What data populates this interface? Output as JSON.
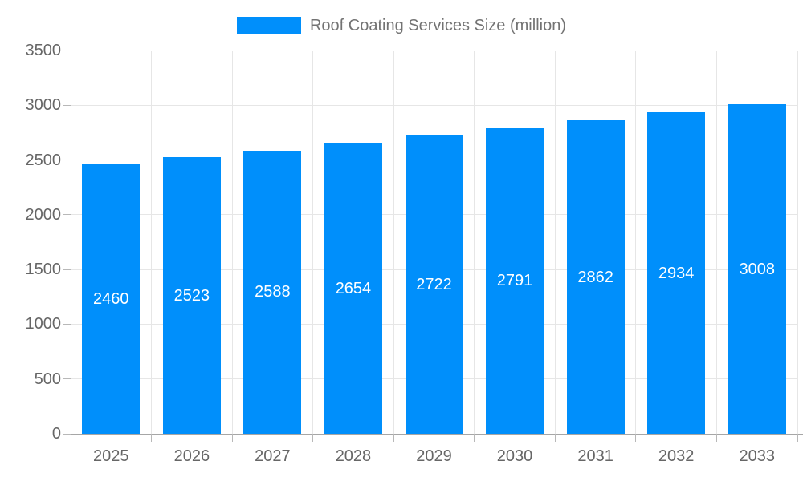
{
  "chart_data": {
    "type": "bar",
    "title": "",
    "xlabel": "",
    "ylabel": "",
    "legend": {
      "label": "Roof Coating Services Size (million)",
      "position": "top-center"
    },
    "series_name": "Roof Coating Services Size (million)",
    "categories": [
      "2025",
      "2026",
      "2027",
      "2028",
      "2029",
      "2030",
      "2031",
      "2032",
      "2033"
    ],
    "values": [
      2460,
      2523,
      2588,
      2654,
      2722,
      2791,
      2862,
      2934,
      3008
    ],
    "value_labels_shown": true,
    "ylim": [
      0,
      3500
    ],
    "ytick_step": 500,
    "yticks": [
      0,
      500,
      1000,
      1500,
      2000,
      2500,
      3000,
      3500
    ],
    "grid": true,
    "colors": {
      "bar": "#008FFB",
      "value_label": "#ffffff",
      "axis_text": "#666666",
      "legend_text": "#737373",
      "gridline": "#e6e6e6",
      "axis_line": "#a6a6a6",
      "tick": "#b8b8b8",
      "background": "#ffffff"
    }
  }
}
